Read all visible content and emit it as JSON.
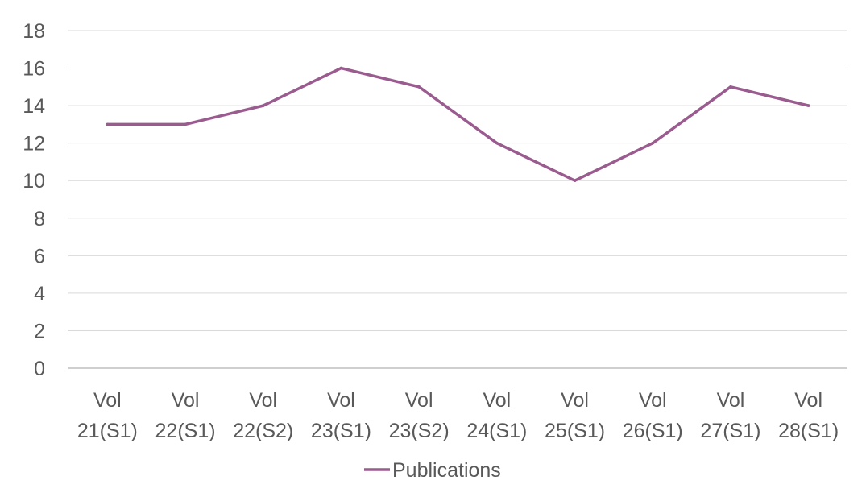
{
  "chart_data": {
    "type": "line",
    "categories": [
      [
        "Vol",
        "21(S1)"
      ],
      [
        "Vol",
        "22(S1)"
      ],
      [
        "Vol",
        "22(S2)"
      ],
      [
        "Vol",
        "23(S1)"
      ],
      [
        "Vol",
        "23(S2)"
      ],
      [
        "Vol",
        "24(S1)"
      ],
      [
        "Vol",
        "25(S1)"
      ],
      [
        "Vol",
        "26(S1)"
      ],
      [
        "Vol",
        "27(S1)"
      ],
      [
        "Vol",
        "28(S1)"
      ]
    ],
    "series": [
      {
        "name": "Publications",
        "values": [
          13,
          13,
          14,
          16,
          15,
          12,
          10,
          12,
          15,
          14
        ],
        "color": "#9a5b8f"
      }
    ],
    "ylim": [
      0,
      18
    ],
    "yticks": [
      0,
      2,
      4,
      6,
      8,
      10,
      12,
      14,
      16,
      18
    ],
    "grid": true,
    "gridColor": "#d9d9d9",
    "axisColor": "#bfbfbf",
    "textColor": "#595959",
    "legend": "bottom"
  }
}
